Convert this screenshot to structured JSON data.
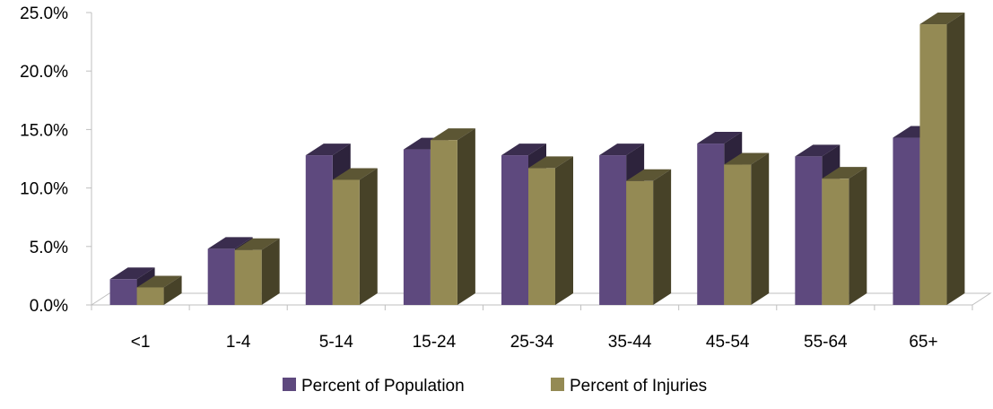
{
  "chart_data": {
    "type": "bar",
    "title": "",
    "xlabel": "",
    "ylabel": "",
    "categories": [
      "<1",
      "1-4",
      "5-14",
      "15-24",
      "25-34",
      "35-44",
      "45-54",
      "55-64",
      "65+"
    ],
    "series": [
      {
        "name": "Percent of Population",
        "color": "#5E497E",
        "values": [
          2.2,
          4.8,
          12.8,
          13.3,
          12.8,
          12.8,
          13.8,
          12.7,
          14.3
        ]
      },
      {
        "name": "Percent of Injuries",
        "color": "#948A54",
        "values": [
          1.5,
          4.7,
          10.7,
          14.1,
          11.7,
          10.6,
          12.0,
          10.8,
          24.0
        ]
      }
    ],
    "ylim": [
      0,
      25
    ],
    "yticks": [
      "0.0%",
      "5.0%",
      "10.0%",
      "15.0%",
      "20.0%",
      "25.0%"
    ],
    "ytick_values": [
      0,
      5,
      10,
      15,
      20,
      25
    ],
    "grid": false,
    "legend_position": "bottom",
    "style": "3d-clustered-column"
  }
}
